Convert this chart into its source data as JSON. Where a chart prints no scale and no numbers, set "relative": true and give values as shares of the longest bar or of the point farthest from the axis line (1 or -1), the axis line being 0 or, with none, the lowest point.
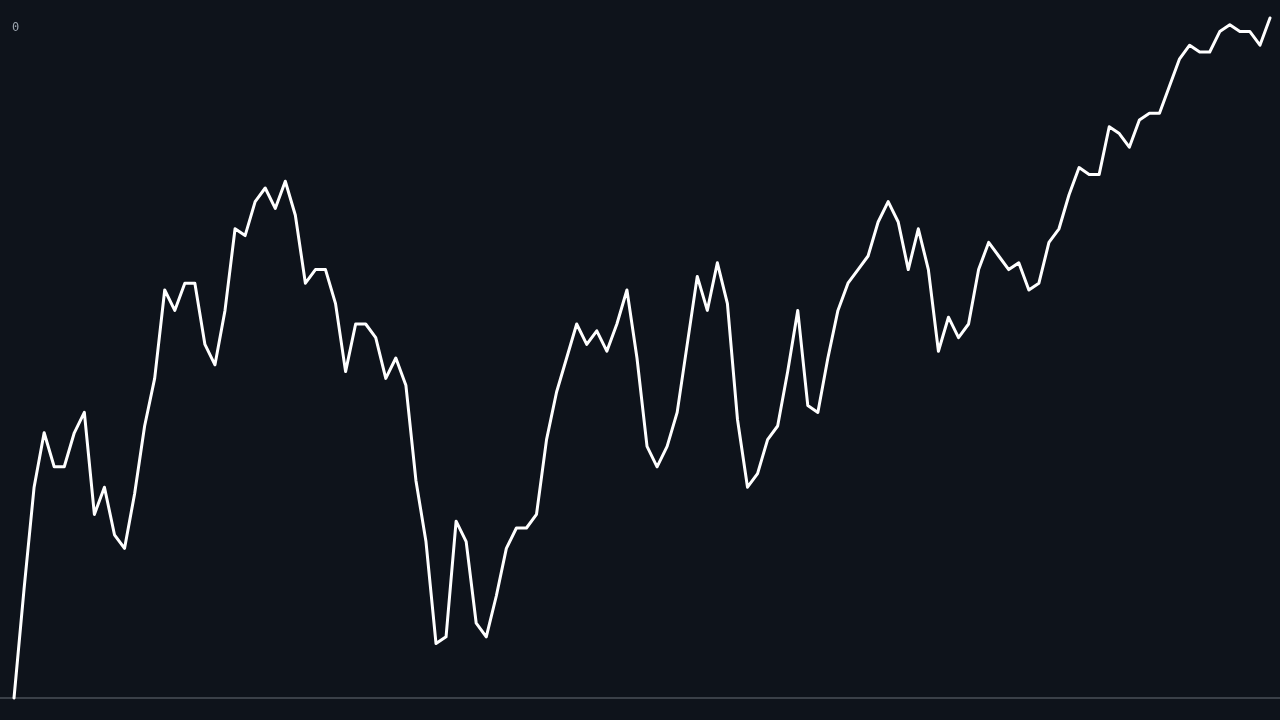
{
  "chart_data": {
    "type": "line",
    "relative": true,
    "annotations": [
      "0"
    ],
    "categories": [
      null,
      null,
      null,
      null,
      null,
      null,
      null,
      null,
      null,
      null,
      null,
      null,
      null,
      null,
      null,
      null,
      null,
      null,
      null,
      null,
      null,
      null,
      null,
      null,
      null,
      null,
      null,
      null,
      null,
      null,
      null,
      null,
      null,
      null,
      null,
      null,
      null,
      null,
      null,
      null,
      null,
      null,
      null,
      null,
      null,
      null,
      null,
      null,
      null,
      null,
      null,
      null,
      null,
      null,
      null,
      null,
      null,
      null,
      null,
      null,
      null,
      null,
      null,
      null,
      null,
      null,
      null,
      null,
      null,
      null,
      null,
      null,
      null,
      null,
      null,
      null,
      null,
      null,
      null,
      null,
      null,
      null,
      null,
      null,
      null,
      null,
      null,
      null,
      null,
      null,
      null,
      null,
      null,
      null,
      null,
      null,
      null,
      null,
      null,
      null,
      null,
      null,
      null,
      null,
      null,
      null,
      null,
      null,
      null,
      null,
      null,
      null,
      null,
      null,
      null,
      null,
      null,
      null,
      null,
      null,
      null,
      null,
      null,
      null,
      null,
      null
    ],
    "series": [
      {
        "color": "#ffffff",
        "values": [
          0,
          0.16,
          0.31,
          0.39,
          0.34,
          0.34,
          0.39,
          0.42,
          0.27,
          0.31,
          0.24,
          0.22,
          0.3,
          0.4,
          0.47,
          0.6,
          0.57,
          0.61,
          0.61,
          0.52,
          0.49,
          0.57,
          0.69,
          0.68,
          0.73,
          0.75,
          0.72,
          0.76,
          0.71,
          0.61,
          0.63,
          0.63,
          0.58,
          0.48,
          0.55,
          0.55,
          0.53,
          0.47,
          0.5,
          0.46,
          0.32,
          0.23,
          0.08,
          0.09,
          0.26,
          0.23,
          0.11,
          0.09,
          0.15,
          0.22,
          0.25,
          0.25,
          0.27,
          0.38,
          0.45,
          0.5,
          0.55,
          0.52,
          0.54,
          0.51,
          0.55,
          0.6,
          0.5,
          0.37,
          0.34,
          0.37,
          0.42,
          0.52,
          0.62,
          0.57,
          0.64,
          0.58,
          0.41,
          0.31,
          0.33,
          0.38,
          0.4,
          0.48,
          0.57,
          0.43,
          0.42,
          0.5,
          0.57,
          0.61,
          0.63,
          0.65,
          0.7,
          0.73,
          0.7,
          0.63,
          0.69,
          0.63,
          0.51,
          0.56,
          0.53,
          0.55,
          0.63,
          0.67,
          0.65,
          0.63,
          0.64,
          0.6,
          0.61,
          0.67,
          0.69,
          0.74,
          0.78,
          0.77,
          0.77,
          0.84,
          0.83,
          0.81,
          0.85,
          0.86,
          0.86,
          0.9,
          0.94,
          0.96,
          0.95,
          0.95,
          0.98,
          0.99,
          0.98,
          0.98,
          0.96,
          1
        ]
      }
    ]
  }
}
